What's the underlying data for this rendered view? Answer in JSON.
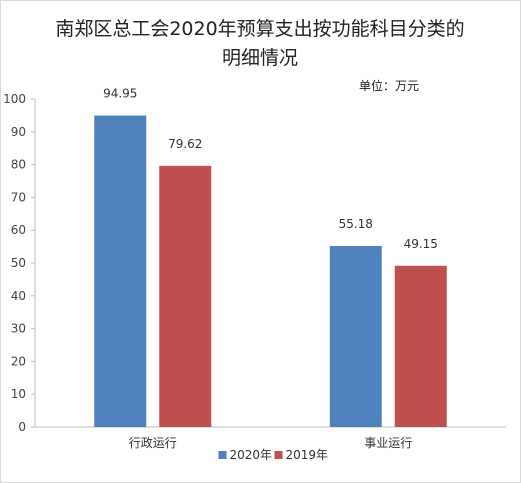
{
  "chart_data": {
    "type": "bar",
    "title_lines": [
      "南郑区总工会2020年预算支出按功能科目分类的",
      "明细情况"
    ],
    "unit_label": "单位：万元",
    "categories": [
      "行政运行",
      "事业运行"
    ],
    "series": [
      {
        "name": "2020年",
        "color": "#4f81bd",
        "values": [
          94.95,
          55.18
        ],
        "labels": [
          "94.95",
          "55.18"
        ]
      },
      {
        "name": "2019年",
        "color": "#c0504d",
        "values": [
          79.62,
          49.15
        ],
        "labels": [
          "79.62",
          "49.15"
        ]
      }
    ],
    "ylim": [
      0,
      100
    ],
    "yticks": [
      0,
      10,
      20,
      30,
      40,
      50,
      60,
      70,
      80,
      90,
      100
    ],
    "grid": false,
    "legend_position": "bottom"
  }
}
